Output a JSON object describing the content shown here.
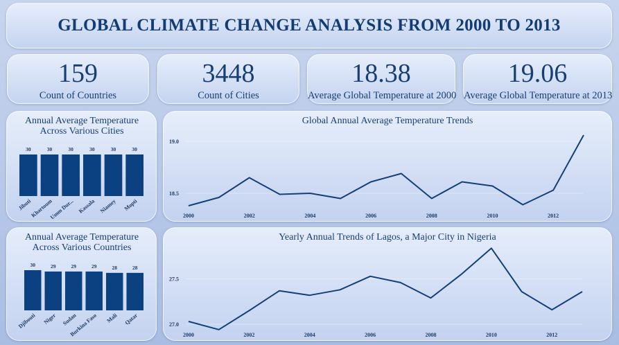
{
  "header": {
    "title": "GLOBAL CLIMATE CHANGE ANALYSIS FROM 2000 TO 2013"
  },
  "kpis": [
    {
      "value": "159",
      "label": "Count of Countries"
    },
    {
      "value": "3448",
      "label": "Count of Cities"
    },
    {
      "value": "18.38",
      "label": "Average Global Temperature at 2000"
    },
    {
      "value": "19.06",
      "label": "Average Global Temperature at 2013"
    }
  ],
  "colors": {
    "bar": "#0b4180",
    "line": "#11407a",
    "text": "#173f73"
  },
  "chart_data": [
    {
      "type": "bar",
      "title": "Annual Average Temperature Across Various Cities",
      "categories": [
        "Jibuti",
        "Khartoum",
        "Umm Dur...",
        "Kassala",
        "Niamey",
        "Mopti"
      ],
      "values": [
        30,
        30,
        30,
        30,
        30,
        30
      ],
      "ylim": [
        0,
        30
      ]
    },
    {
      "type": "line",
      "title": "Global Annual Average Temperature Trends",
      "x": [
        2000,
        2001,
        2002,
        2003,
        2004,
        2005,
        2006,
        2007,
        2008,
        2009,
        2010,
        2011,
        2012,
        2013
      ],
      "values": [
        18.38,
        18.46,
        18.65,
        18.49,
        18.5,
        18.45,
        18.61,
        18.69,
        18.45,
        18.61,
        18.57,
        18.39,
        18.53,
        19.06
      ],
      "xticks": [
        "2000",
        "2002",
        "2004",
        "2006",
        "2008",
        "2010",
        "2012"
      ],
      "yticks": [
        "18.5",
        "19.0"
      ],
      "ylim": [
        18.3,
        19.1
      ]
    },
    {
      "type": "bar",
      "title": "Annual Average Temperature Across Various Countries",
      "categories": [
        "Djibouti",
        "Niger",
        "Sudan",
        "Burkina Faso",
        "Mali",
        "Qatar"
      ],
      "values": [
        30,
        29,
        29,
        29,
        28,
        28
      ],
      "ylim": [
        0,
        30
      ]
    },
    {
      "type": "line",
      "title": "Yearly Annual Trends of Lagos, a Major City in Nigeria",
      "x": [
        2000,
        2001,
        2002,
        2003,
        2004,
        2005,
        2006,
        2007,
        2008,
        2009,
        2010,
        2011,
        2012,
        2013
      ],
      "values": [
        27.03,
        26.94,
        27.15,
        27.37,
        27.32,
        27.38,
        27.53,
        27.46,
        27.29,
        27.55,
        27.84,
        27.36,
        27.16,
        27.36
      ],
      "xticks": [
        "2000",
        "2002",
        "2004",
        "2006",
        "2008",
        "2010",
        "2012"
      ],
      "yticks": [
        "27.0",
        "27.5"
      ],
      "ylim": [
        26.9,
        27.85
      ]
    }
  ]
}
